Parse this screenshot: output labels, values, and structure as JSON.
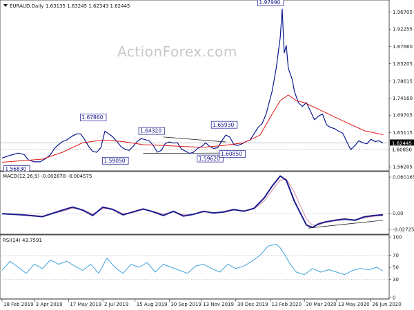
{
  "chart_data": {
    "type": "line",
    "main": {
      "symbol": "EURAUD,Daily",
      "ohlc": "1.63135 1.63245 1.62343 1.62445",
      "watermark": "ActionForex.com",
      "y_ticks": [
        "1.96705",
        "1.92255",
        "1.87660",
        "1.83205",
        "1.78615",
        "1.74160",
        "1.69705",
        "1.65115",
        "1.60660",
        "1.56205"
      ],
      "y_tick_values": [
        1.96705,
        1.92255,
        1.8766,
        1.83205,
        1.78615,
        1.7416,
        1.69705,
        1.65115,
        1.6066,
        1.56205
      ],
      "ylim": [
        1.555,
        1.995
      ],
      "current_price": 1.62445,
      "current_price_label": "1.62445",
      "support_level": 1.6085,
      "support_label": "1.60850",
      "price_series": [
        [
          0,
          1.585
        ],
        [
          4,
          1.592
        ],
        [
          8,
          1.598
        ],
        [
          11,
          1.594
        ],
        [
          13,
          1.58
        ],
        [
          16,
          1.575
        ],
        [
          19,
          1.575
        ],
        [
          22,
          1.585
        ],
        [
          24,
          1.594
        ],
        [
          26,
          1.61
        ],
        [
          28,
          1.62
        ],
        [
          30,
          1.628
        ],
        [
          32,
          1.632
        ],
        [
          35,
          1.643
        ],
        [
          37,
          1.648
        ],
        [
          39,
          1.648
        ],
        [
          41,
          1.633
        ],
        [
          43,
          1.615
        ],
        [
          45,
          1.602
        ],
        [
          47,
          1.6
        ],
        [
          49,
          1.612
        ],
        [
          51,
          1.655
        ],
        [
          53,
          1.648
        ],
        [
          55,
          1.64
        ],
        [
          57,
          1.628
        ],
        [
          59,
          1.615
        ],
        [
          61,
          1.608
        ],
        [
          63,
          1.605
        ],
        [
          65,
          1.615
        ],
        [
          67,
          1.628
        ],
        [
          69,
          1.636
        ],
        [
          71,
          1.633
        ],
        [
          73,
          1.63
        ],
        [
          75,
          1.618
        ],
        [
          77,
          1.6
        ],
        [
          79,
          1.605
        ],
        [
          81,
          1.623
        ],
        [
          83,
          1.627
        ],
        [
          85,
          1.624
        ],
        [
          87,
          1.625
        ],
        [
          89,
          1.608
        ],
        [
          91,
          1.603
        ],
        [
          93,
          1.597
        ],
        [
          95,
          1.6
        ],
        [
          97,
          1.61
        ],
        [
          99,
          1.615
        ],
        [
          101,
          1.625
        ],
        [
          103,
          1.615
        ],
        [
          105,
          1.61
        ],
        [
          107,
          1.612
        ],
        [
          109,
          1.63
        ],
        [
          111,
          1.645
        ],
        [
          113,
          1.64
        ],
        [
          115,
          1.62
        ],
        [
          117,
          1.618
        ],
        [
          119,
          1.622
        ],
        [
          121,
          1.628
        ],
        [
          123,
          1.632
        ],
        [
          125,
          1.648
        ],
        [
          127,
          1.665
        ],
        [
          129,
          1.675
        ],
        [
          131,
          1.7
        ],
        [
          133,
          1.74
        ],
        [
          134,
          1.76
        ],
        [
          136,
          1.82
        ],
        [
          138,
          1.9
        ],
        [
          139,
          1.975
        ],
        [
          140,
          1.86
        ],
        [
          141,
          1.88
        ],
        [
          142,
          1.82
        ],
        [
          144,
          1.79
        ],
        [
          145,
          1.76
        ],
        [
          147,
          1.73
        ],
        [
          149,
          1.72
        ],
        [
          151,
          1.73
        ],
        [
          153,
          1.708
        ],
        [
          155,
          1.685
        ],
        [
          157,
          1.695
        ],
        [
          159,
          1.7
        ],
        [
          161,
          1.672
        ],
        [
          163,
          1.665
        ],
        [
          165,
          1.662
        ],
        [
          167,
          1.655
        ],
        [
          169,
          1.65
        ],
        [
          171,
          1.628
        ],
        [
          173,
          1.607
        ],
        [
          175,
          1.617
        ],
        [
          177,
          1.63
        ],
        [
          179,
          1.625
        ],
        [
          181,
          1.622
        ],
        [
          183,
          1.634
        ],
        [
          185,
          1.628
        ],
        [
          187,
          1.63
        ],
        [
          189,
          1.624
        ]
      ],
      "ma_series": [
        [
          0,
          1.574
        ],
        [
          10,
          1.578
        ],
        [
          20,
          1.582
        ],
        [
          30,
          1.6
        ],
        [
          40,
          1.625
        ],
        [
          50,
          1.632
        ],
        [
          60,
          1.628
        ],
        [
          70,
          1.62
        ],
        [
          80,
          1.618
        ],
        [
          90,
          1.615
        ],
        [
          100,
          1.613
        ],
        [
          110,
          1.618
        ],
        [
          120,
          1.625
        ],
        [
          128,
          1.645
        ],
        [
          134,
          1.7
        ],
        [
          138,
          1.735
        ],
        [
          142,
          1.75
        ],
        [
          146,
          1.735
        ],
        [
          150,
          1.73
        ],
        [
          160,
          1.705
        ],
        [
          170,
          1.68
        ],
        [
          180,
          1.656
        ],
        [
          189,
          1.646
        ]
      ],
      "annotations": [
        {
          "label": "1.97990",
          "x": 139,
          "y": 1.9799
        },
        {
          "label": "1.67860",
          "x": 51,
          "y": 1.6786
        },
        {
          "label": "1.64320",
          "x": 80,
          "y": 1.6432
        },
        {
          "label": "1.65930",
          "x": 116,
          "y": 1.6593
        },
        {
          "label": "1.56830",
          "x": 13,
          "y": 1.5683
        },
        {
          "label": "1.59050",
          "x": 62,
          "y": 1.5905
        },
        {
          "label": "1.59620",
          "x": 109,
          "y": 1.5962
        },
        {
          "label": "1.60850",
          "x": 120,
          "y": 1.6085
        }
      ]
    },
    "macd": {
      "label": "MACD(12,26,9) -0.002878 -0.004575",
      "y_ticks": [
        "0.060165",
        "0.00",
        "-0.02725"
      ],
      "y_tick_values": [
        0.060165,
        0.0,
        -0.02725
      ],
      "ylim": [
        -0.033,
        0.066
      ],
      "macd_series": [
        [
          0,
          -0.001
        ],
        [
          10,
          -0.003
        ],
        [
          20,
          -0.006
        ],
        [
          30,
          0.005
        ],
        [
          35,
          0.01
        ],
        [
          40,
          0.005
        ],
        [
          45,
          -0.004
        ],
        [
          50,
          0.01
        ],
        [
          55,
          0.006
        ],
        [
          60,
          -0.003
        ],
        [
          65,
          0.002
        ],
        [
          70,
          0.007
        ],
        [
          75,
          0.002
        ],
        [
          80,
          -0.004
        ],
        [
          85,
          0.003
        ],
        [
          90,
          -0.005
        ],
        [
          95,
          -0.002
        ],
        [
          100,
          0.003
        ],
        [
          105,
          0.0
        ],
        [
          110,
          0.002
        ],
        [
          115,
          0.006
        ],
        [
          120,
          0.003
        ],
        [
          125,
          0.008
        ],
        [
          130,
          0.025
        ],
        [
          134,
          0.045
        ],
        [
          138,
          0.062
        ],
        [
          141,
          0.055
        ],
        [
          145,
          0.02
        ],
        [
          148,
          0.0
        ],
        [
          151,
          -0.02
        ],
        [
          154,
          -0.024
        ],
        [
          157,
          -0.018
        ],
        [
          160,
          -0.015
        ],
        [
          165,
          -0.012
        ],
        [
          170,
          -0.01
        ],
        [
          175,
          -0.012
        ],
        [
          180,
          -0.006
        ],
        [
          185,
          -0.004
        ],
        [
          189,
          -0.002878
        ]
      ],
      "signal_series": [
        [
          0,
          -0.001
        ],
        [
          10,
          -0.002
        ],
        [
          20,
          -0.005
        ],
        [
          30,
          0.003
        ],
        [
          35,
          0.008
        ],
        [
          40,
          0.006
        ],
        [
          45,
          -0.002
        ],
        [
          50,
          0.008
        ],
        [
          55,
          0.007
        ],
        [
          60,
          -0.001
        ],
        [
          65,
          0.001
        ],
        [
          70,
          0.006
        ],
        [
          75,
          0.003
        ],
        [
          80,
          -0.002
        ],
        [
          85,
          0.002
        ],
        [
          90,
          -0.003
        ],
        [
          95,
          -0.002
        ],
        [
          100,
          0.002
        ],
        [
          105,
          0.001
        ],
        [
          110,
          0.001
        ],
        [
          115,
          0.005
        ],
        [
          120,
          0.004
        ],
        [
          125,
          0.007
        ],
        [
          130,
          0.02
        ],
        [
          134,
          0.038
        ],
        [
          138,
          0.055
        ],
        [
          141,
          0.057
        ],
        [
          145,
          0.035
        ],
        [
          148,
          0.012
        ],
        [
          151,
          -0.01
        ],
        [
          154,
          -0.02
        ],
        [
          157,
          -0.02
        ],
        [
          160,
          -0.016
        ],
        [
          165,
          -0.013
        ],
        [
          170,
          -0.011
        ],
        [
          175,
          -0.011
        ],
        [
          180,
          -0.008
        ],
        [
          185,
          -0.005
        ],
        [
          189,
          -0.004575
        ]
      ]
    },
    "rsi": {
      "label": "RSI(14) 43.7591",
      "y_ticks": [
        "100",
        "70",
        "50",
        "30",
        "0"
      ],
      "y_tick_values": [
        100,
        70,
        50,
        30,
        0
      ],
      "ylim": [
        0,
        100
      ],
      "rsi_series": [
        [
          0,
          45
        ],
        [
          4,
          60
        ],
        [
          8,
          50
        ],
        [
          12,
          40
        ],
        [
          16,
          55
        ],
        [
          20,
          48
        ],
        [
          24,
          62
        ],
        [
          28,
          55
        ],
        [
          32,
          60
        ],
        [
          36,
          52
        ],
        [
          40,
          45
        ],
        [
          44,
          55
        ],
        [
          48,
          40
        ],
        [
          52,
          65
        ],
        [
          56,
          50
        ],
        [
          60,
          40
        ],
        [
          64,
          55
        ],
        [
          68,
          50
        ],
        [
          72,
          58
        ],
        [
          76,
          42
        ],
        [
          80,
          55
        ],
        [
          84,
          50
        ],
        [
          88,
          45
        ],
        [
          92,
          40
        ],
        [
          96,
          52
        ],
        [
          100,
          55
        ],
        [
          104,
          48
        ],
        [
          108,
          42
        ],
        [
          112,
          55
        ],
        [
          116,
          48
        ],
        [
          120,
          52
        ],
        [
          124,
          60
        ],
        [
          128,
          70
        ],
        [
          132,
          85
        ],
        [
          136,
          88
        ],
        [
          138,
          82
        ],
        [
          140,
          72
        ],
        [
          143,
          55
        ],
        [
          146,
          42
        ],
        [
          150,
          38
        ],
        [
          154,
          48
        ],
        [
          158,
          42
        ],
        [
          162,
          46
        ],
        [
          166,
          42
        ],
        [
          170,
          38
        ],
        [
          174,
          45
        ],
        [
          178,
          48
        ],
        [
          182,
          46
        ],
        [
          186,
          50
        ],
        [
          189,
          43.76
        ]
      ]
    },
    "x_axis": {
      "labels": [
        "18 Feb 2019",
        "3 Apr 2019",
        "17 May 2019",
        "2 Jul 2019",
        "15 Aug 2019",
        "30 Sep 2019",
        "13 Nov 2019",
        "30 Dec 2019",
        "13 Feb 2020",
        "30 Mar 2020",
        "13 May 2020",
        "26 Jun 2020"
      ],
      "label_positions": [
        0,
        16,
        33,
        50,
        66,
        83,
        99,
        116,
        133,
        150,
        166,
        183
      ],
      "x_range": [
        0,
        190
      ]
    },
    "colors": {
      "price": "#0b1a8f",
      "ma": "#e01818",
      "macd": "#1b1b8f",
      "signal": "#d08aa4",
      "rsi": "#3ea0dc",
      "grid": "#bfbfbf"
    }
  }
}
